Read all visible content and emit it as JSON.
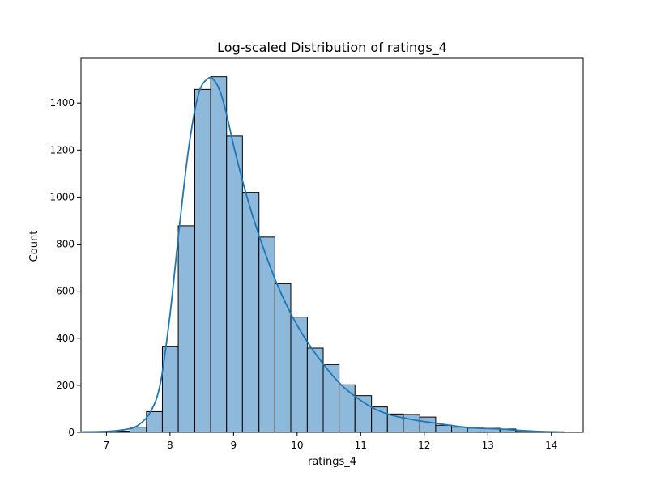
{
  "chart_data": {
    "type": "bar",
    "title": "Log-scaled Distribution of ratings_4",
    "xlabel": "ratings_4",
    "ylabel": "Count",
    "xlim": [
      6.6,
      14.5
    ],
    "ylim": [
      0,
      1590
    ],
    "x_ticks": [
      "7",
      "8",
      "9",
      "10",
      "11",
      "12",
      "13",
      "14"
    ],
    "y_ticks": [
      "0",
      "200",
      "400",
      "600",
      "800",
      "1000",
      "1200",
      "1400"
    ],
    "grid": false,
    "legend": "none",
    "bar_color": "#8fb9db",
    "bar_edge_color": "#000000",
    "kde_color": "#1f77b4",
    "bins": [
      {
        "x0": 6.62,
        "x1": 6.87,
        "count": 1
      },
      {
        "x0": 6.87,
        "x1": 7.12,
        "count": 2
      },
      {
        "x0": 7.12,
        "x1": 7.37,
        "count": 5
      },
      {
        "x0": 7.37,
        "x1": 7.63,
        "count": 22
      },
      {
        "x0": 7.63,
        "x1": 7.88,
        "count": 88
      },
      {
        "x0": 7.88,
        "x1": 8.13,
        "count": 366
      },
      {
        "x0": 8.13,
        "x1": 8.39,
        "count": 878
      },
      {
        "x0": 8.39,
        "x1": 8.64,
        "count": 1458
      },
      {
        "x0": 8.64,
        "x1": 8.89,
        "count": 1512
      },
      {
        "x0": 8.89,
        "x1": 9.14,
        "count": 1260
      },
      {
        "x0": 9.14,
        "x1": 9.4,
        "count": 1020
      },
      {
        "x0": 9.4,
        "x1": 9.65,
        "count": 830
      },
      {
        "x0": 9.65,
        "x1": 9.9,
        "count": 632
      },
      {
        "x0": 9.9,
        "x1": 10.16,
        "count": 490
      },
      {
        "x0": 10.16,
        "x1": 10.41,
        "count": 358
      },
      {
        "x0": 10.41,
        "x1": 10.66,
        "count": 288
      },
      {
        "x0": 10.66,
        "x1": 10.91,
        "count": 202
      },
      {
        "x0": 10.91,
        "x1": 11.17,
        "count": 156
      },
      {
        "x0": 11.17,
        "x1": 11.42,
        "count": 108
      },
      {
        "x0": 11.42,
        "x1": 11.67,
        "count": 78
      },
      {
        "x0": 11.67,
        "x1": 11.93,
        "count": 76
      },
      {
        "x0": 11.93,
        "x1": 12.18,
        "count": 65
      },
      {
        "x0": 12.18,
        "x1": 12.43,
        "count": 30
      },
      {
        "x0": 12.43,
        "x1": 12.68,
        "count": 22
      },
      {
        "x0": 12.68,
        "x1": 12.94,
        "count": 18
      },
      {
        "x0": 12.94,
        "x1": 13.19,
        "count": 17
      },
      {
        "x0": 13.19,
        "x1": 13.44,
        "count": 14
      },
      {
        "x0": 13.44,
        "x1": 13.7,
        "count": 6
      },
      {
        "x0": 13.7,
        "x1": 13.95,
        "count": 3
      },
      {
        "x0": 13.95,
        "x1": 14.2,
        "count": 1
      }
    ],
    "kde": {
      "x": [
        6.62,
        7.0,
        7.3,
        7.5,
        7.7,
        7.85,
        8.0,
        8.15,
        8.3,
        8.45,
        8.6,
        8.7,
        8.8,
        8.9,
        9.0,
        9.15,
        9.3,
        9.5,
        9.7,
        9.9,
        10.1,
        10.3,
        10.5,
        10.7,
        10.9,
        11.1,
        11.3,
        11.5,
        11.7,
        11.9,
        12.1,
        12.3,
        12.5,
        12.7,
        12.9,
        13.1,
        13.3,
        13.5,
        13.7,
        13.9,
        14.2
      ],
      "y": [
        2,
        4,
        12,
        30,
        90,
        210,
        500,
        880,
        1220,
        1440,
        1505,
        1495,
        1440,
        1340,
        1220,
        1060,
        920,
        760,
        620,
        505,
        410,
        330,
        260,
        200,
        155,
        118,
        90,
        72,
        60,
        50,
        42,
        34,
        26,
        20,
        17,
        15,
        12,
        8,
        5,
        3,
        1
      ]
    }
  }
}
